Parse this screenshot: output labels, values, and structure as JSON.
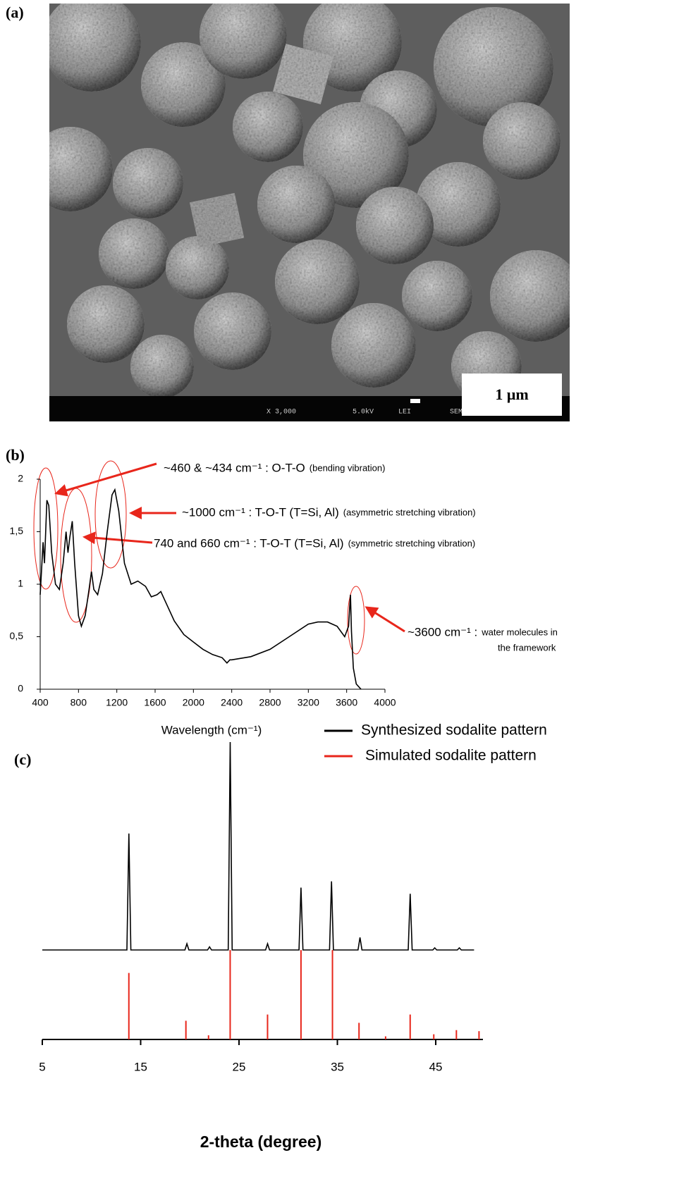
{
  "panels": {
    "a": {
      "label": "(a)",
      "scale_bar": "1 μm",
      "info": [
        "X 3,000",
        "5.0kV",
        "LEI",
        "SEM"
      ]
    }
  },
  "chart_data": [
    {
      "type": "line",
      "panel_label": "(b)",
      "xlabel": "Wavelength (cm⁻¹)",
      "color": "#000000",
      "xlim": [
        400,
        4000
      ],
      "xticks": [
        400,
        800,
        1200,
        1600,
        2000,
        2400,
        2800,
        3200,
        3600,
        4000
      ],
      "ylim": [
        0,
        2
      ],
      "yticks": [
        0,
        {
          "value": 0.5,
          "label": "0,5"
        },
        1,
        {
          "value": 1.5,
          "label": "1,5"
        },
        2
      ],
      "x": [
        400,
        430,
        445,
        470,
        490,
        520,
        560,
        600,
        640,
        670,
        690,
        710,
        735,
        760,
        800,
        830,
        870,
        910,
        935,
        960,
        1000,
        1050,
        1100,
        1150,
        1180,
        1220,
        1280,
        1350,
        1420,
        1500,
        1560,
        1620,
        1660,
        1700,
        1800,
        1900,
        2000,
        2100,
        2200,
        2300,
        2350,
        2380,
        2400,
        2600,
        2800,
        3000,
        3200,
        3300,
        3400,
        3500,
        3580,
        3620,
        3640,
        3650,
        3670,
        3700,
        3750
      ],
      "values": [
        0.9,
        1.4,
        1.2,
        1.8,
        1.75,
        1.3,
        1.0,
        0.95,
        1.2,
        1.5,
        1.3,
        1.45,
        1.6,
        1.2,
        0.7,
        0.6,
        0.7,
        0.95,
        1.12,
        0.95,
        0.9,
        1.1,
        1.5,
        1.85,
        1.9,
        1.7,
        1.2,
        1.0,
        1.03,
        0.98,
        0.88,
        0.9,
        0.93,
        0.85,
        0.65,
        0.52,
        0.45,
        0.38,
        0.33,
        0.3,
        0.25,
        0.28,
        0.28,
        0.31,
        0.38,
        0.5,
        0.62,
        0.64,
        0.64,
        0.6,
        0.5,
        0.6,
        0.9,
        0.55,
        0.2,
        0.05,
        0
      ],
      "annotations": [
        {
          "text": "~460 & ~434 cm⁻¹ : O-T-O",
          "note": [
            "(bending vibration)"
          ]
        },
        {
          "text": "~1000 cm⁻¹ : T-O-T (T=Si, Al)",
          "note": [
            "(asymmetric stretching vibration)"
          ]
        },
        {
          "text": "740 and 660 cm⁻¹ : T-O-T (T=Si, Al)",
          "note": [
            "(symmetric stretching  vibration)"
          ]
        },
        {
          "text": "~3600 cm⁻¹ :",
          "note": [
            "water molecules in",
            "the framework"
          ]
        }
      ]
    },
    {
      "type": "xrd",
      "panel_label": "(c)",
      "xlabel": "2-theta (degree)",
      "xlim": [
        5,
        49.8
      ],
      "xticks": [
        5,
        15,
        25,
        35,
        45
      ],
      "series": [
        {
          "name": "Synthesized sodalite pattern",
          "color": "#000000",
          "style": "line",
          "x": [
            5,
            13.6,
            13.8,
            14.0,
            19.5,
            19.7,
            19.9,
            21.8,
            22.0,
            22.2,
            23.9,
            24.1,
            24.3,
            27.7,
            27.9,
            28.1,
            31.1,
            31.3,
            31.5,
            34.2,
            34.4,
            34.6,
            37.1,
            37.3,
            37.5,
            42.2,
            42.4,
            42.6,
            44.7,
            44.9,
            45.1,
            47.2,
            47.4,
            47.6,
            48.9
          ],
          "values": [
            0,
            0,
            56,
            0,
            0,
            3,
            0,
            0,
            1.5,
            0,
            0,
            100,
            0,
            0,
            3,
            0,
            0,
            30,
            0,
            0,
            33,
            0,
            0,
            6,
            0,
            0,
            27,
            0,
            0,
            1,
            0,
            0,
            1,
            0,
            0
          ]
        },
        {
          "name": "Simulated sodalite pattern",
          "color": "#e8261b",
          "style": "stick",
          "x": [
            13.8,
            19.6,
            21.9,
            24.1,
            27.9,
            31.3,
            34.5,
            37.2,
            39.9,
            42.4,
            44.8,
            47.1,
            49.4
          ],
          "values": [
            32,
            9,
            2,
            43,
            12,
            43,
            43,
            8,
            1.5,
            12,
            2.5,
            4.5,
            4
          ]
        }
      ]
    }
  ]
}
